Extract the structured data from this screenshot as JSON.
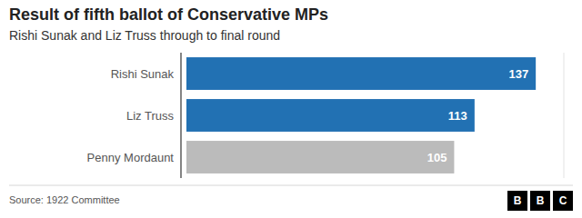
{
  "chart_data": {
    "type": "bar",
    "orientation": "horizontal",
    "title": "Result of fifth ballot of Conservative MPs",
    "subtitle": "Rishi Sunak and Liz Truss through to final round",
    "categories": [
      "Rishi Sunak",
      "Liz Truss",
      "Penny Mordaunt"
    ],
    "values": [
      137,
      113,
      105
    ],
    "colors": [
      "#2271B3",
      "#2271B3",
      "#BBBBBB"
    ],
    "xlim": [
      0,
      148
    ],
    "data_labels": true,
    "tick_labels": false,
    "grid": false,
    "source": "Source: 1922 Committee",
    "logo": [
      "B",
      "B",
      "C"
    ]
  }
}
